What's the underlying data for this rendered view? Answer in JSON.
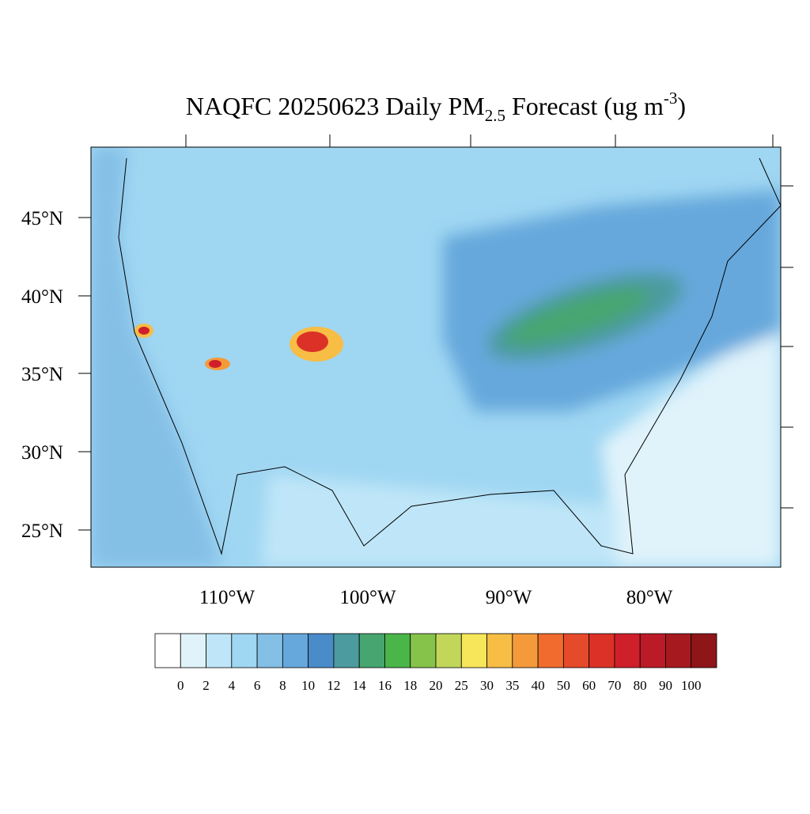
{
  "title": {
    "main": "NAQFC 20250623 Daily PM",
    "sub": "2.5",
    "mid": " Forecast (ug m",
    "sup": "-3",
    "end": ")"
  },
  "map": {
    "lat_labels": [
      "45°N",
      "40°N",
      "35°N",
      "30°N",
      "25°N"
    ],
    "lon_labels": [
      "110°W",
      "100°W",
      "90°W",
      "80°W"
    ]
  },
  "colorbar": {
    "labels": [
      "0",
      "2",
      "4",
      "6",
      "8",
      "10",
      "12",
      "14",
      "16",
      "18",
      "20",
      "25",
      "30",
      "35",
      "40",
      "50",
      "60",
      "70",
      "80",
      "90",
      "100"
    ],
    "colors": [
      "#ffffff",
      "#e0f3fb",
      "#bfe6f8",
      "#9fd6f2",
      "#84bfe6",
      "#66a8dc",
      "#4a8bc9",
      "#4b9b9f",
      "#47a66f",
      "#4ab548",
      "#86c34b",
      "#c2d75a",
      "#f7e65a",
      "#f7bd45",
      "#f59a3b",
      "#f06b2d",
      "#e54a2b",
      "#dc3127",
      "#cf1f2b",
      "#bb1a27",
      "#a6191f",
      "#8e1518"
    ]
  }
}
